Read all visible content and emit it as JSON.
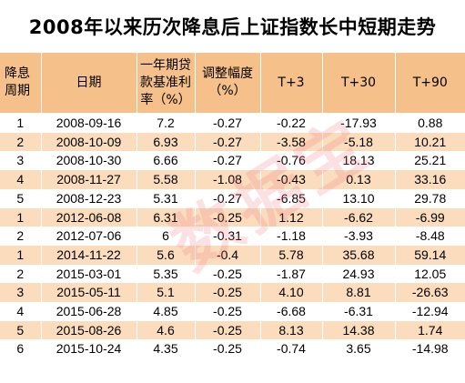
{
  "title": "2008年以来历次降息后上证指数长中短期走势",
  "table": {
    "headers": [
      "降息周期",
      "日期",
      "一年期贷款基准利率（%）",
      "调整幅度（%）",
      "T+3",
      "T+30",
      "T+90"
    ],
    "rows": [
      [
        "1",
        "2008-09-16",
        "7.2",
        "-0.27",
        "-0.22",
        "-17.93",
        "0.88"
      ],
      [
        "2",
        "2008-10-09",
        "6.93",
        "-0.27",
        "-3.58",
        "-5.18",
        "10.21"
      ],
      [
        "3",
        "2008-10-30",
        "6.66",
        "-0.27",
        "-0.76",
        "18.13",
        "25.21"
      ],
      [
        "4",
        "2008-11-27",
        "5.58",
        "-1.08",
        "-0.43",
        "0.13",
        "33.16"
      ],
      [
        "5",
        "2008-12-23",
        "5.31",
        "-0.27",
        "-6.85",
        "13.10",
        "29.78"
      ],
      [
        "1",
        "2012-06-08",
        "6.31",
        "-0.25",
        "1.12",
        "-6.62",
        "-6.99"
      ],
      [
        "2",
        "2012-07-06",
        "6",
        "-0.31",
        "-1.18",
        "-3.93",
        "-8.48"
      ],
      [
        "1",
        "2014-11-22",
        "5.6",
        "-0.4",
        "5.78",
        "35.68",
        "59.14"
      ],
      [
        "2",
        "2015-03-01",
        "5.35",
        "-0.25",
        "-1.87",
        "24.93",
        "12.05"
      ],
      [
        "3",
        "2015-05-11",
        "5.1",
        "-0.25",
        "4.10",
        "8.81",
        "-26.63"
      ],
      [
        "4",
        "2015-06-28",
        "4.85",
        "-0.25",
        "-6.68",
        "-6.31",
        "-12.94"
      ],
      [
        "5",
        "2015-08-26",
        "4.6",
        "-0.25",
        "8.13",
        "14.38",
        "1.74"
      ],
      [
        "6",
        "2015-10-24",
        "4.35",
        "-0.25",
        "-0.74",
        "3.65",
        "-14.98"
      ]
    ]
  },
  "watermark": "数据宝",
  "colors": {
    "header_bg": "#f5c08a",
    "stripe_bg": "#fbdcbc",
    "row_bg": "#ffffff"
  }
}
